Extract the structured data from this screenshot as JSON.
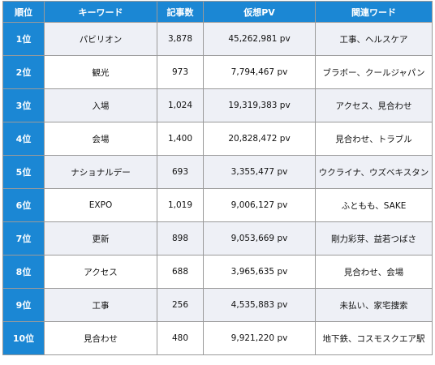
{
  "headers": [
    "順位",
    "キーワード",
    "記事数",
    "仮想PV",
    "関連ワード"
  ],
  "rows": [
    {
      "rank": "1位",
      "keyword": "パビリオン",
      "articles": "3,878",
      "pv": "45,262,981 pv",
      "related": "工事、ヘルスケア"
    },
    {
      "rank": "2位",
      "keyword": "観光",
      "articles": "973",
      "pv": "7,794,467 pv",
      "related": "ブラボー、クールジャパン"
    },
    {
      "rank": "3位",
      "keyword": "入場",
      "articles": "1,024",
      "pv": "19,319,383 pv",
      "related": "アクセス、見合わせ"
    },
    {
      "rank": "4位",
      "keyword": "会場",
      "articles": "1,400",
      "pv": "20,828,472 pv",
      "related": "見合わせ、トラブル"
    },
    {
      "rank": "5位",
      "keyword": "ナショナルデー",
      "articles": "693",
      "pv": "3,355,477 pv",
      "related": "ウクライナ、ウズベキスタン"
    },
    {
      "rank": "6位",
      "keyword": "EXPO",
      "articles": "1,019",
      "pv": "9,006,127 pv",
      "related": "ふともも、SAKE"
    },
    {
      "rank": "7位",
      "keyword": "更新",
      "articles": "898",
      "pv": "9,053,669 pv",
      "related": "剛力彩芽、益若つばさ"
    },
    {
      "rank": "8位",
      "keyword": "アクセス",
      "articles": "688",
      "pv": "3,965,635 pv",
      "related": "見合わせ、会場"
    },
    {
      "rank": "9位",
      "keyword": "工事",
      "articles": "256",
      "pv": "4,535,883 pv",
      "related": "未払い、家宅捜索"
    },
    {
      "rank": "10位",
      "keyword": "見合わせ",
      "articles": "480",
      "pv": "9,921,220 pv",
      "related": "地下鉄、コスモスクエア駅"
    }
  ],
  "colors": {
    "header_bg": "#1b87d4",
    "rank_bg": "#1b87d4",
    "stripe_bg": "#eef0f6",
    "border": "#9a9a9a"
  }
}
